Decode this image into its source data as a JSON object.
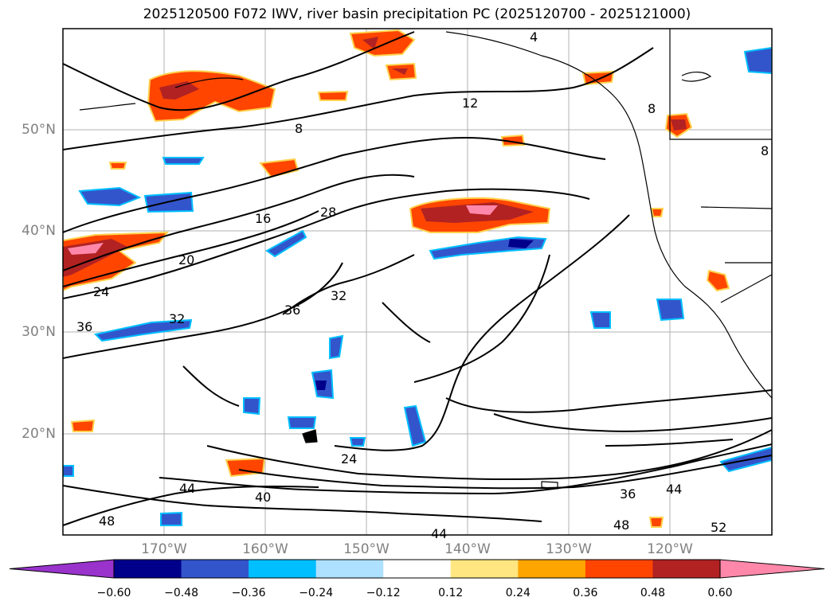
{
  "title": "2025120500 F072 IWV, river basin precipitation PC (2025120700 - 2025121000)",
  "map": {
    "lat_labels": [
      "50°N",
      "40°N",
      "30°N",
      "20°N"
    ],
    "lon_labels": [
      "170°W",
      "160°W",
      "150°W",
      "140°W",
      "130°W",
      "120°W"
    ],
    "contour_labels": [
      "4",
      "8",
      "8",
      "8",
      "12",
      "16",
      "20",
      "24",
      "28",
      "32",
      "32",
      "36",
      "36",
      "24",
      "40",
      "44",
      "44",
      "44",
      "48",
      "48",
      "36",
      "52"
    ],
    "grid": true,
    "extent": "North Pacific and western North America"
  },
  "colorbar": {
    "ticks": [
      "−0.60",
      "−0.48",
      "−0.36",
      "−0.24",
      "−0.12",
      "0.12",
      "0.24",
      "0.36",
      "0.48",
      "0.60"
    ],
    "colors": [
      "#9933cc",
      "#00008b",
      "#3355cc",
      "#00bfff",
      "#aee0ff",
      "#ffffff",
      "#ffe680",
      "#ffa500",
      "#ff4500",
      "#b22222",
      "#ff88aa"
    ]
  }
}
